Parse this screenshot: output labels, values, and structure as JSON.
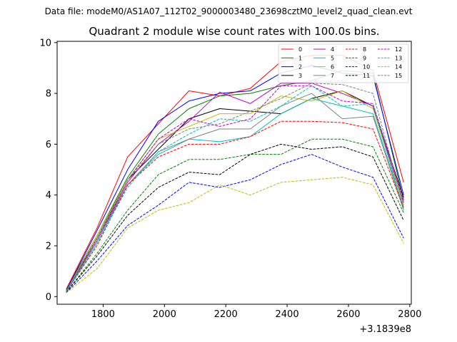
{
  "figure": {
    "suptitle": "Data file: modeM0/AS1A07_112T02_9000003480_23698cztM0_level2_quad_clean.evt"
  },
  "chart_data": {
    "type": "line",
    "title": "Quadrant 2 module wise count rates with 100.0s bins.",
    "xlabel": "",
    "ylabel": "",
    "x_offset_label": "+3.1839e8",
    "xlim": [
      1650,
      2805
    ],
    "ylim": [
      -0.3,
      10.05
    ],
    "x_ticks": [
      1800,
      2000,
      2200,
      2400,
      2600,
      2800
    ],
    "y_ticks": [
      0,
      2,
      4,
      6,
      8,
      10
    ],
    "grid": false,
    "legend_position": "top-right",
    "legend_columns": 4,
    "x": [
      1680,
      1780,
      1880,
      1980,
      2080,
      2180,
      2280,
      2380,
      2480,
      2580,
      2680,
      2780
    ],
    "series": [
      {
        "name": "0",
        "color": "#ff0000",
        "dash": "solid",
        "values": [
          0.3,
          2.7,
          5.5,
          6.8,
          8.1,
          7.9,
          8.2,
          9.25,
          9.5,
          9.5,
          8.9,
          4.5
        ]
      },
      {
        "name": "1",
        "color": "#008000",
        "dash": "solid",
        "values": [
          0.28,
          2.4,
          4.7,
          6.4,
          7.4,
          7.9,
          8.0,
          8.3,
          8.5,
          8.9,
          8.8,
          3.8
        ]
      },
      {
        "name": "2",
        "color": "#0000ff",
        "dash": "solid",
        "values": [
          0.25,
          2.6,
          5.0,
          6.9,
          7.7,
          8.0,
          8.1,
          8.8,
          9.1,
          8.8,
          8.7,
          4.0
        ]
      },
      {
        "name": "3",
        "color": "#000000",
        "dash": "solid",
        "values": [
          0.22,
          2.3,
          4.6,
          5.8,
          7.0,
          7.4,
          7.3,
          7.2,
          7.8,
          8.1,
          7.5,
          3.9
        ]
      },
      {
        "name": "4",
        "color": "#bf00bf",
        "dash": "solid",
        "values": [
          0.2,
          2.2,
          4.5,
          6.0,
          6.9,
          8.05,
          7.6,
          8.4,
          8.4,
          8.0,
          7.5,
          3.7
        ]
      },
      {
        "name": "5",
        "color": "#00bfbf",
        "dash": "solid",
        "values": [
          0.18,
          2.1,
          4.4,
          5.6,
          6.2,
          6.1,
          6.3,
          7.2,
          7.8,
          7.5,
          7.2,
          3.5
        ]
      },
      {
        "name": "6",
        "color": "#bfbf00",
        "dash": "solid",
        "values": [
          0.22,
          2.4,
          4.6,
          6.2,
          6.7,
          7.2,
          7.2,
          7.9,
          7.7,
          8.1,
          7.4,
          3.6
        ]
      },
      {
        "name": "7",
        "color": "#808080",
        "dash": "solid",
        "values": [
          0.2,
          2.2,
          4.4,
          5.7,
          6.2,
          6.6,
          6.6,
          7.5,
          8.0,
          7.0,
          7.1,
          3.4
        ]
      },
      {
        "name": "8",
        "color": "#ff0000",
        "dash": "dashed",
        "values": [
          0.2,
          2.0,
          4.4,
          5.5,
          6.0,
          6.0,
          6.3,
          6.9,
          6.9,
          6.85,
          6.6,
          3.5
        ]
      },
      {
        "name": "9",
        "color": "#008000",
        "dash": "dashed",
        "values": [
          0.18,
          1.7,
          3.4,
          4.8,
          5.4,
          5.4,
          5.6,
          5.6,
          6.2,
          6.2,
          5.9,
          3.3
        ]
      },
      {
        "name": "10",
        "color": "#0000ff",
        "dash": "dashed",
        "values": [
          0.15,
          1.4,
          2.8,
          3.6,
          4.5,
          4.3,
          4.6,
          5.2,
          5.6,
          5.1,
          4.7,
          2.3
        ]
      },
      {
        "name": "11",
        "color": "#000000",
        "dash": "dashed",
        "values": [
          0.18,
          1.6,
          3.2,
          4.3,
          4.9,
          4.8,
          5.6,
          6.0,
          5.8,
          5.9,
          5.5,
          3.0
        ]
      },
      {
        "name": "12",
        "color": "#bf00bf",
        "dash": "dashed",
        "values": [
          0.22,
          2.2,
          4.6,
          6.2,
          7.0,
          6.7,
          7.0,
          8.3,
          8.3,
          7.7,
          7.6,
          3.8
        ]
      },
      {
        "name": "13",
        "color": "#00bfbf",
        "dash": "dashed",
        "values": [
          0.2,
          2.1,
          4.3,
          5.7,
          6.4,
          7.0,
          6.9,
          7.5,
          8.3,
          7.5,
          7.6,
          3.4
        ]
      },
      {
        "name": "14",
        "color": "#bfbf00",
        "dash": "dashed",
        "values": [
          0.15,
          1.1,
          2.7,
          3.4,
          3.7,
          4.4,
          4.0,
          4.5,
          4.6,
          4.7,
          4.4,
          2.1
        ]
      },
      {
        "name": "15",
        "color": "#808080",
        "dash": "dashed",
        "values": [
          0.22,
          2.3,
          4.6,
          6.0,
          6.6,
          6.8,
          7.3,
          7.8,
          8.4,
          8.35,
          8.0,
          3.6
        ]
      }
    ]
  }
}
